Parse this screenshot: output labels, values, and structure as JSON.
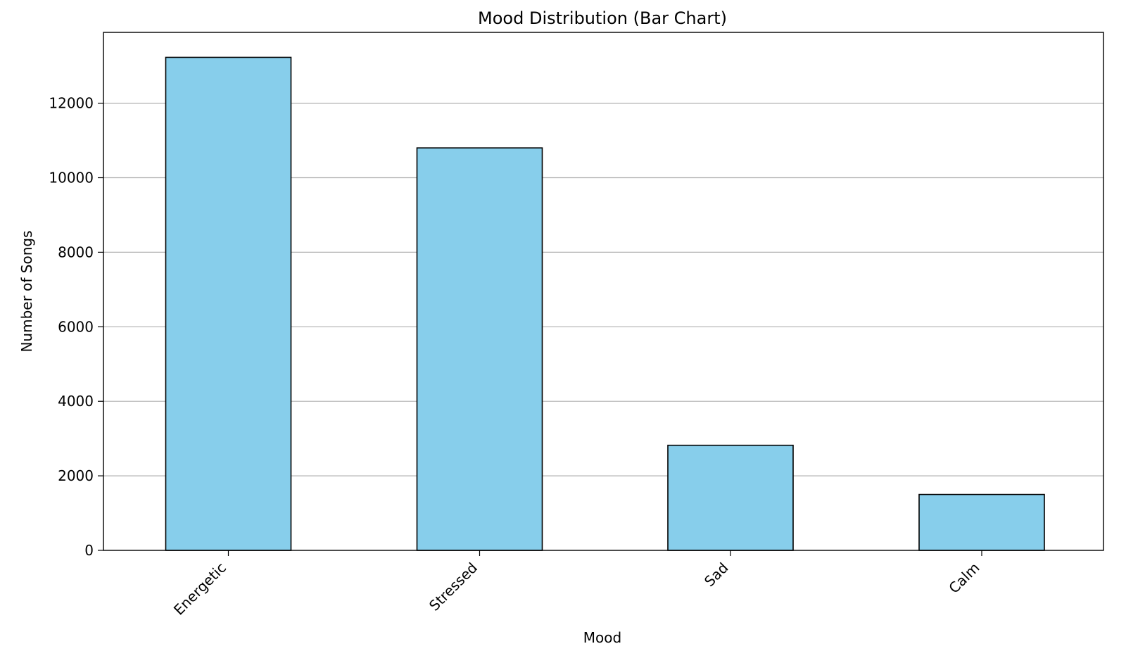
{
  "chart_data": {
    "type": "bar",
    "title": "Mood Distribution (Bar Chart)",
    "xlabel": "Mood",
    "ylabel": "Number of Songs",
    "categories": [
      "Energetic",
      "Stressed",
      "Sad",
      "Calm"
    ],
    "values": [
      13230,
      10800,
      2820,
      1500
    ],
    "ylim": [
      0,
      13900
    ],
    "yticks": [
      0,
      2000,
      4000,
      6000,
      8000,
      10000,
      12000
    ],
    "grid": "y-axis",
    "legend": "none",
    "bar_color": "#87ceeb",
    "edge_color": "#000000"
  }
}
